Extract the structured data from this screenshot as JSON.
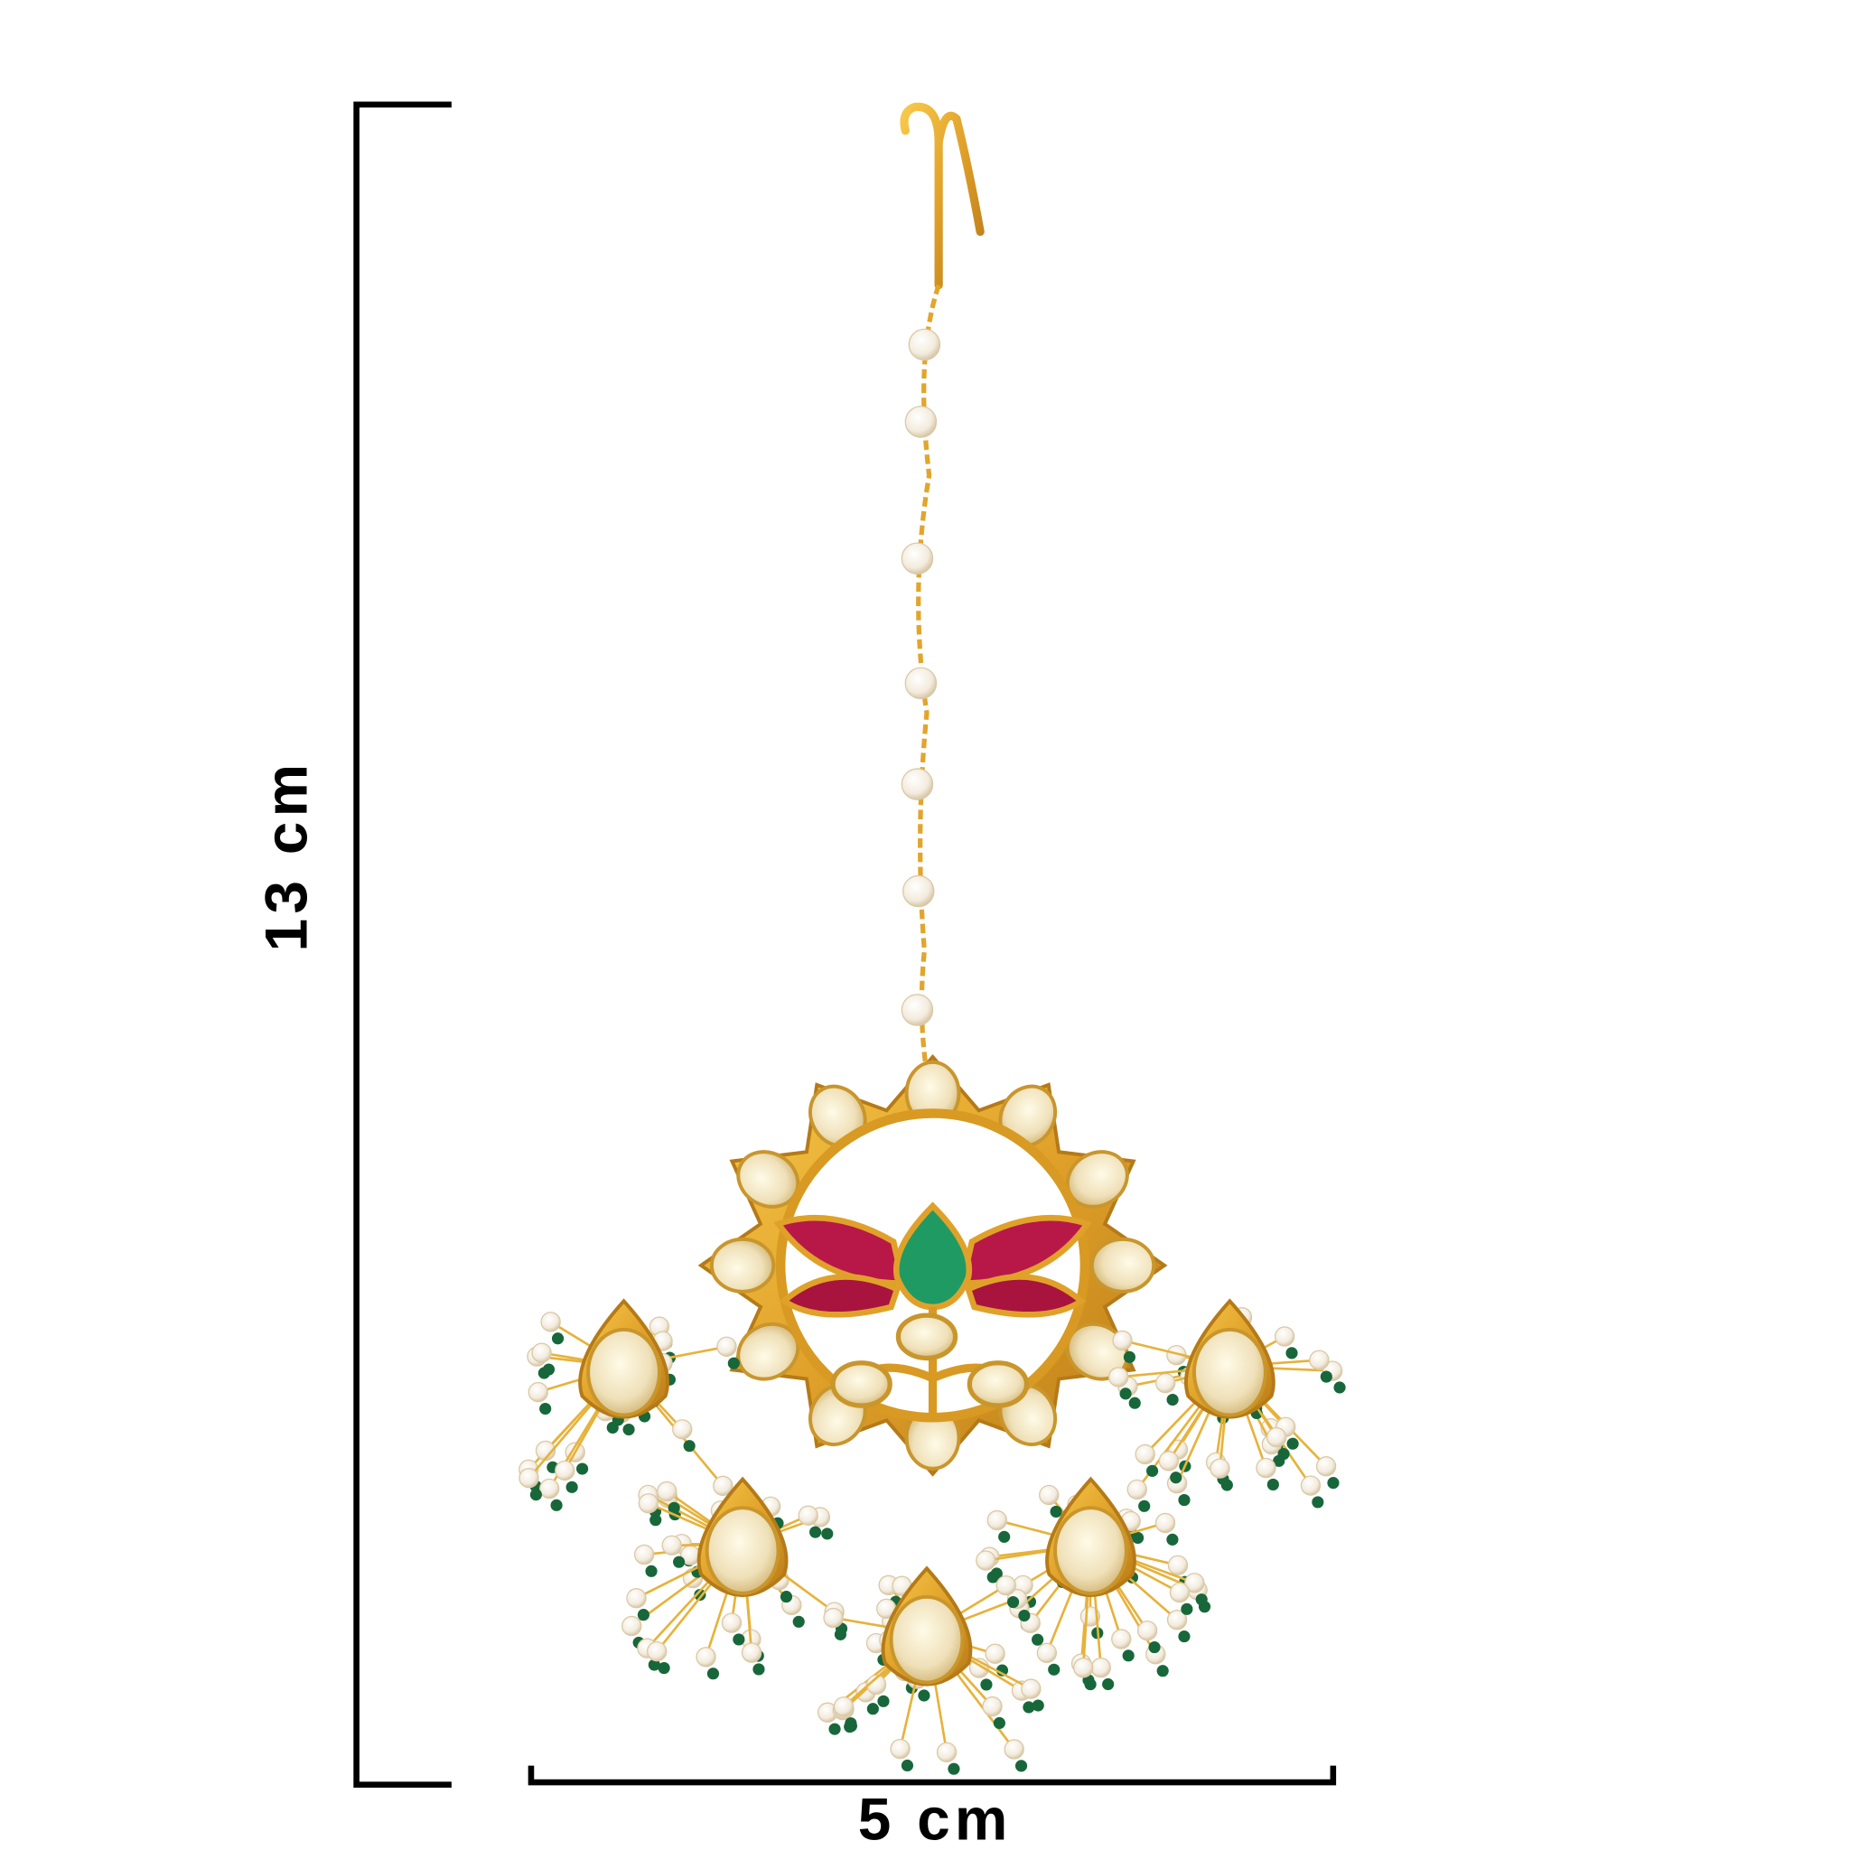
{
  "dimensions": {
    "height_label": "13 cm",
    "width_label": "5 cm"
  }
}
